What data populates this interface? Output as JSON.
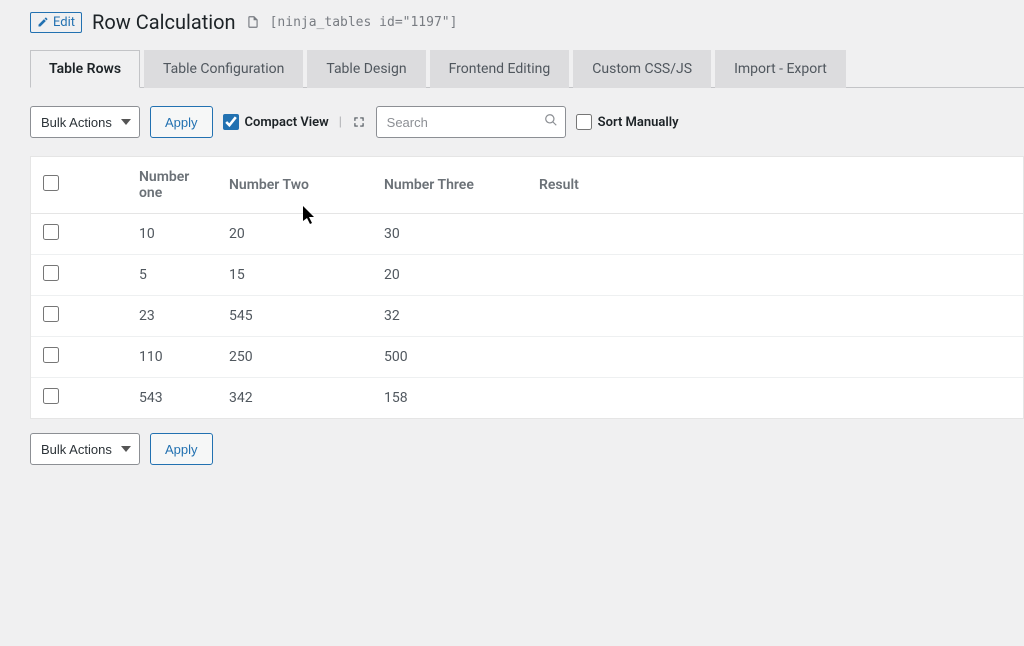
{
  "header": {
    "edit_label": "Edit",
    "title": "Row Calculation",
    "shortcode": "[ninja_tables id=\"1197\"]"
  },
  "tabs": [
    {
      "label": "Table Rows",
      "active": true
    },
    {
      "label": "Table Configuration",
      "active": false
    },
    {
      "label": "Table Design",
      "active": false
    },
    {
      "label": "Frontend Editing",
      "active": false
    },
    {
      "label": "Custom CSS/JS",
      "active": false
    },
    {
      "label": "Import - Export",
      "active": false
    }
  ],
  "toolbar": {
    "bulk_actions_label": "Bulk Actions",
    "apply_label": "Apply",
    "compact_view_label": "Compact View",
    "compact_view_checked": true,
    "search_placeholder": "Search",
    "sort_manually_label": "Sort Manually",
    "sort_manually_checked": false
  },
  "table": {
    "columns": [
      "Number one",
      "Number Two",
      "Number Three",
      "Result"
    ],
    "rows": [
      [
        "10",
        "20",
        "30",
        ""
      ],
      [
        "5",
        "15",
        "20",
        ""
      ],
      [
        "23",
        "545",
        "32",
        ""
      ],
      [
        "110",
        "250",
        "500",
        ""
      ],
      [
        "543",
        "342",
        "158",
        ""
      ]
    ]
  },
  "colors": {
    "link": "#2271b1",
    "text": "#3c434a",
    "muted": "#787c82",
    "border": "#c3c4c7",
    "bg": "#f0f0f1",
    "table_bg": "#ffffff",
    "row_border": "#eef0f1"
  }
}
